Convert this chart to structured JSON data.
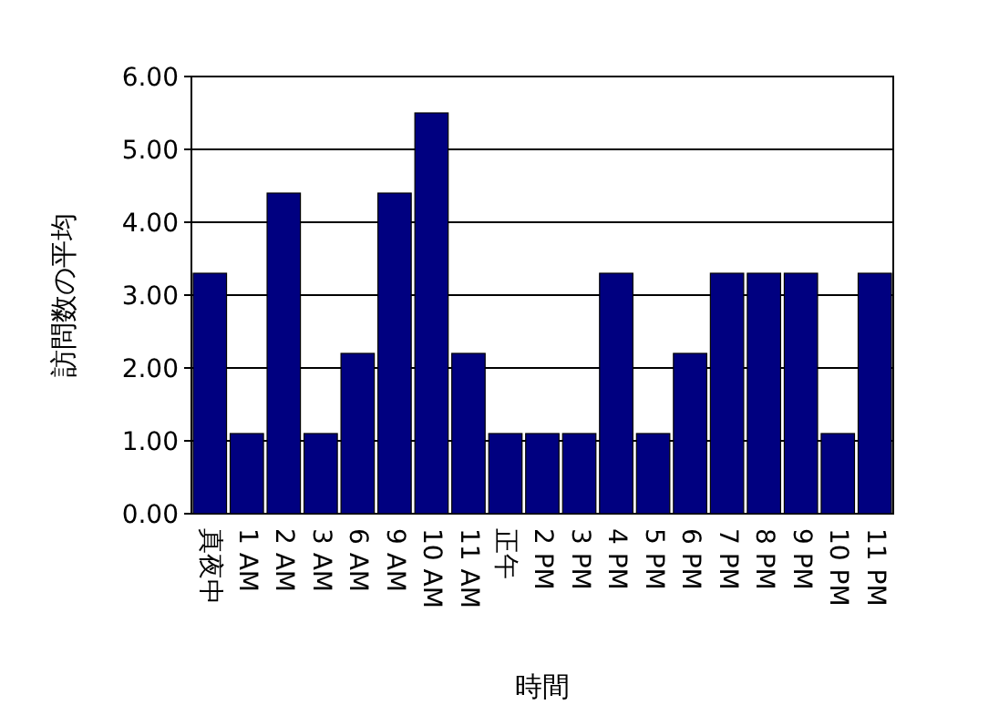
{
  "chart_data": {
    "type": "bar",
    "xlabel": "時間",
    "ylabel": "訪問数の平均",
    "categories": [
      "真夜中",
      "1 AM",
      "2 AM",
      "3 AM",
      "6 AM",
      "9 AM",
      "10 AM",
      "11 AM",
      "正午",
      "2 PM",
      "3 PM",
      "4 PM",
      "5 PM",
      "6 PM",
      "7 PM",
      "8 PM",
      "9 PM",
      "10 PM",
      "11 PM"
    ],
    "values": [
      3.3,
      1.1,
      4.4,
      1.1,
      2.2,
      4.4,
      5.5,
      2.2,
      1.1,
      1.1,
      1.1,
      3.3,
      1.1,
      2.2,
      3.3,
      3.3,
      3.3,
      1.1,
      3.3
    ],
    "color": "#000080",
    "ylim": [
      0,
      6
    ],
    "yticks": [
      {
        "value": 0,
        "label": "0.00"
      },
      {
        "value": 1,
        "label": "1.00"
      },
      {
        "value": 2,
        "label": "2.00"
      },
      {
        "value": 3,
        "label": "3.00"
      },
      {
        "value": 4,
        "label": "4.00"
      },
      {
        "value": 5,
        "label": "5.00"
      },
      {
        "value": 6,
        "label": "6.00"
      }
    ],
    "grid": "y"
  }
}
